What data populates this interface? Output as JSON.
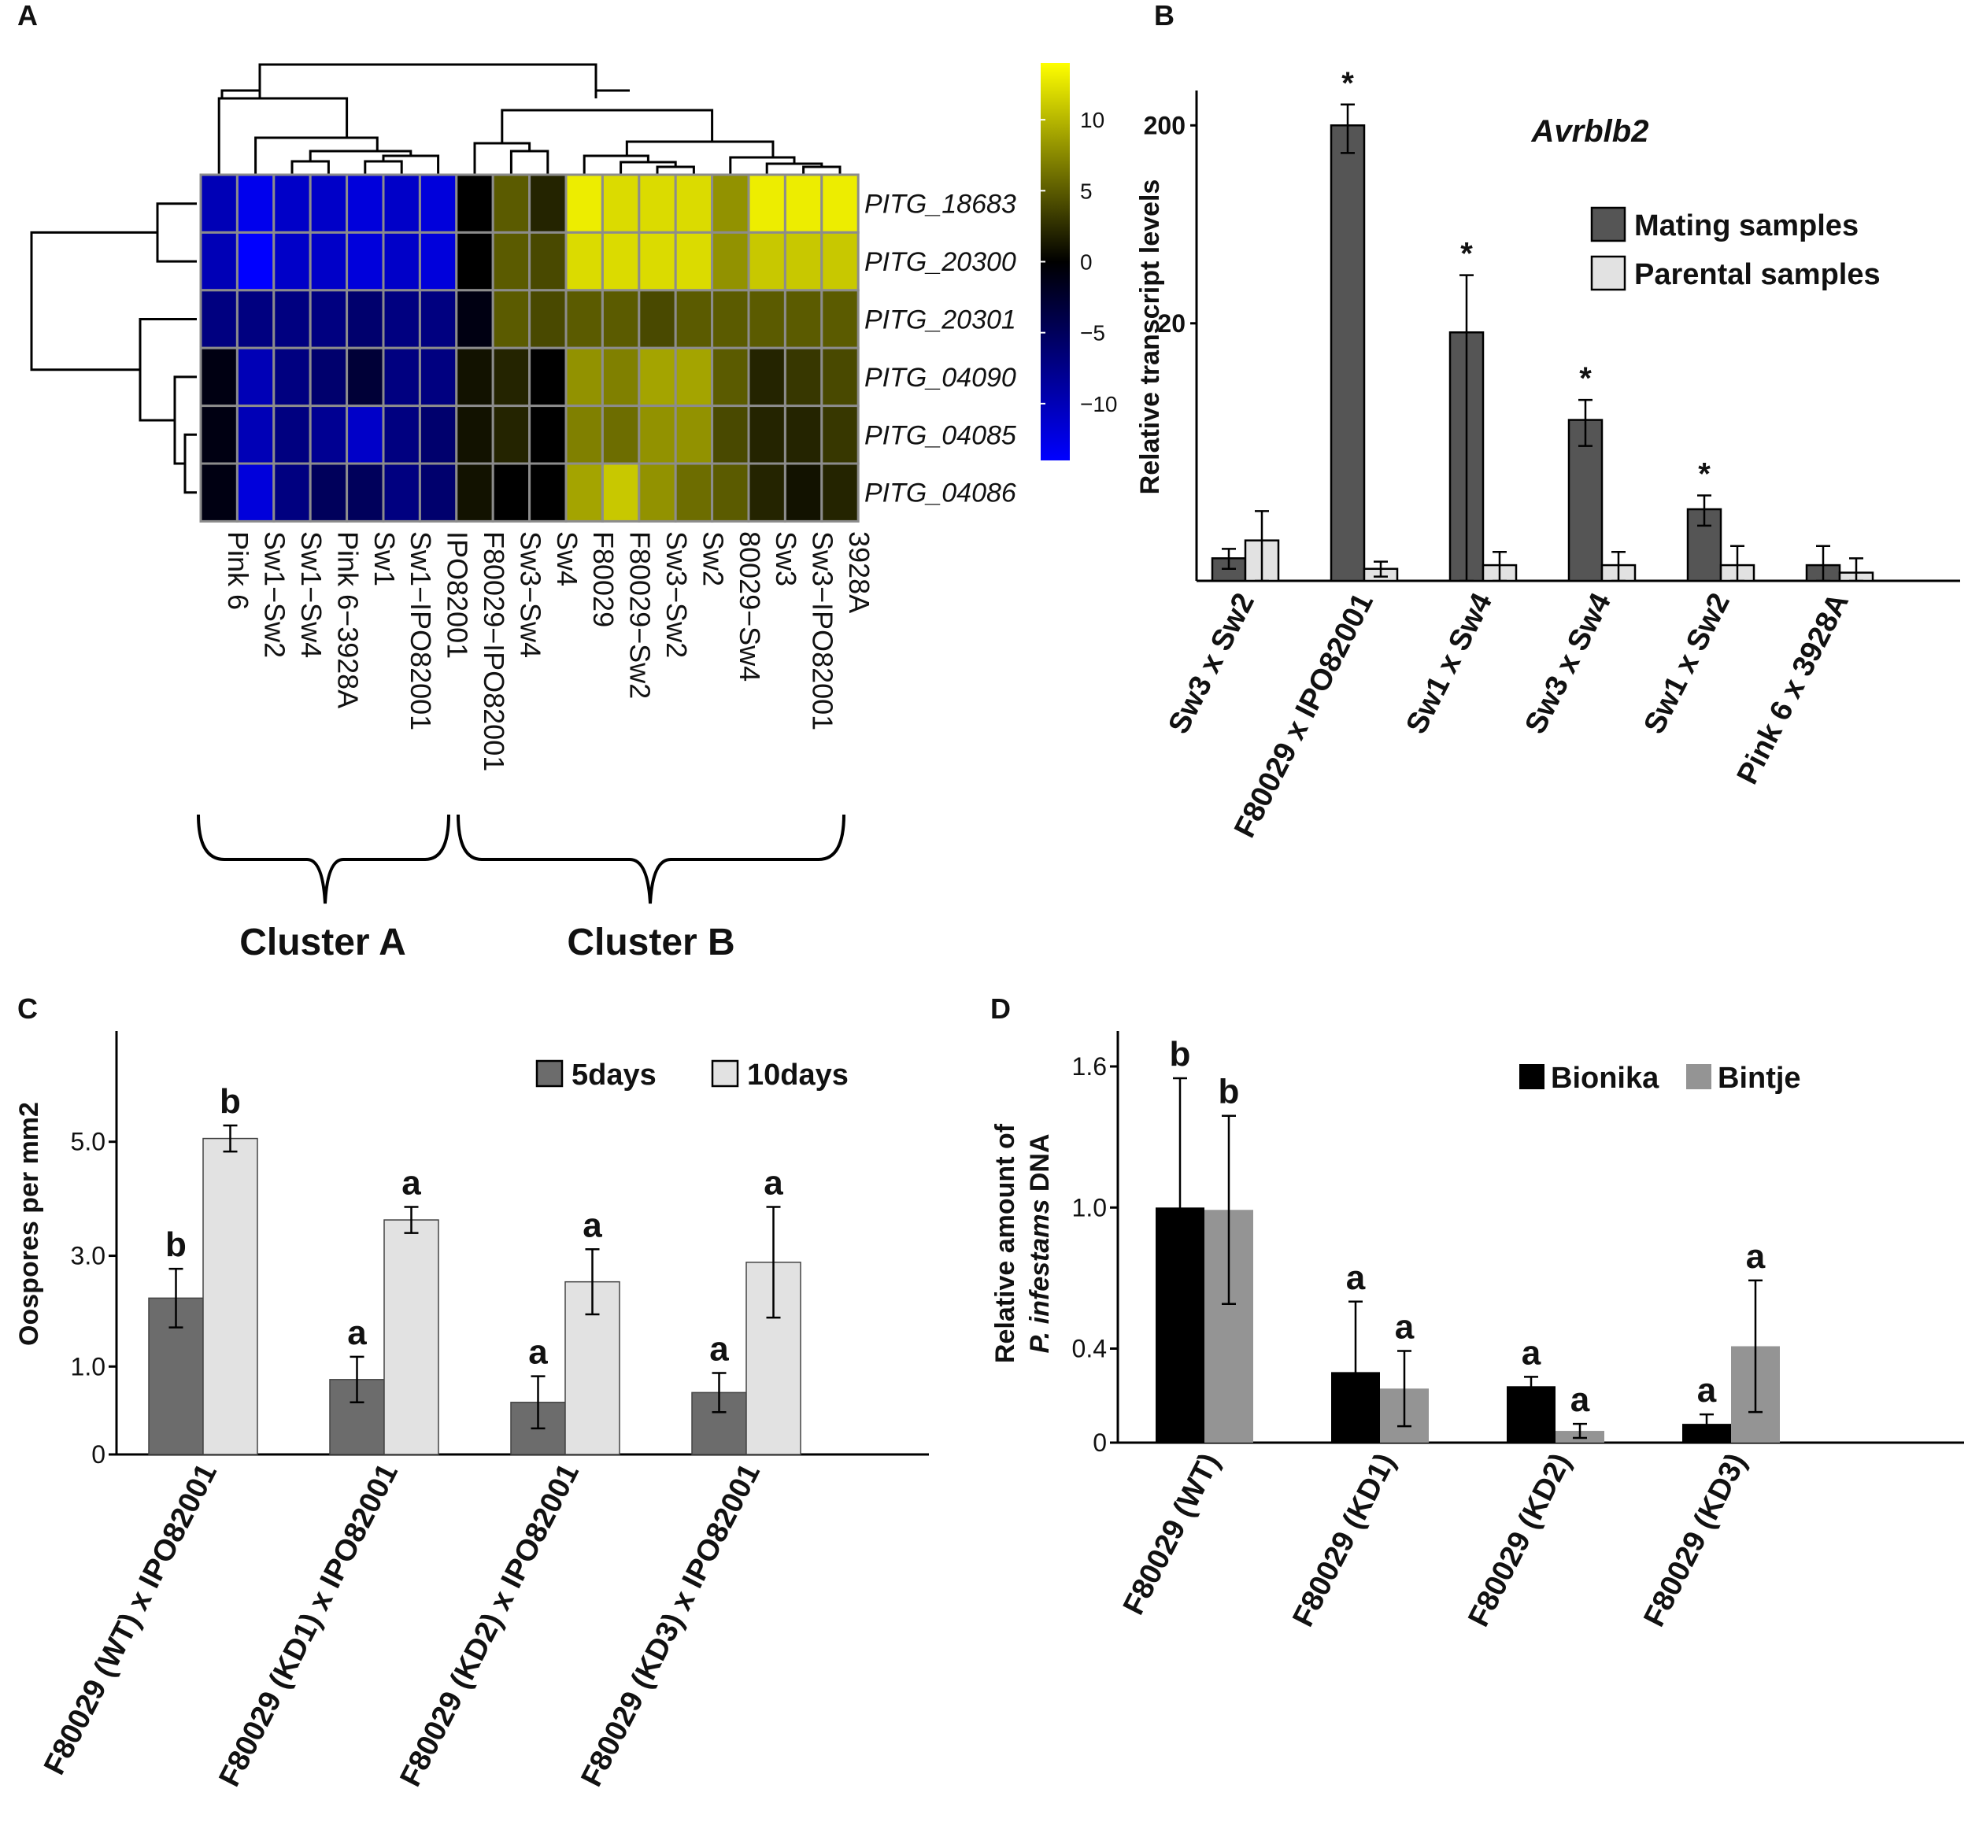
{
  "panels": {
    "A": {
      "letter": "A",
      "cluster_labels": [
        "Cluster A",
        "Cluster B"
      ],
      "chart_data": {
        "type": "heatmap",
        "rows": [
          "PITG_18683",
          "PITG_20300",
          "PITG_20301",
          "PITG_04090",
          "PITG_04085",
          "PITG_04086"
        ],
        "columns": [
          "Pink 6",
          "Sw1−Sw2",
          "Sw1−Sw4",
          "Pink 6−3928A",
          "Sw1",
          "Sw1−IPO82001",
          "IPO82001",
          "F80029−IPO82001",
          "Sw3−Sw4",
          "Sw4",
          "F80029",
          "F80029−Sw2",
          "Sw3−Sw2",
          "Sw2",
          "80029−Sw4",
          "Sw3",
          "Sw3−IPO82001",
          "3928A"
        ],
        "values": [
          [
            -10,
            -13,
            -11,
            -11,
            -12,
            -11,
            -12,
            0,
            5,
            2,
            13,
            12,
            12,
            12,
            8,
            13,
            13,
            13
          ],
          [
            -10,
            -14,
            -11,
            -11,
            -12,
            -11,
            -12,
            0,
            5,
            4,
            12,
            12,
            12,
            12,
            8,
            11,
            11,
            11
          ],
          [
            -7,
            -7,
            -7,
            -7,
            -6,
            -7,
            -7,
            -1,
            5,
            4,
            5,
            5,
            4,
            5,
            5,
            5,
            5,
            5
          ],
          [
            -1,
            -10,
            -7,
            -6,
            -3,
            -7,
            -7,
            1,
            2,
            0,
            8,
            7,
            9,
            9,
            5,
            2,
            3,
            4
          ],
          [
            -1,
            -10,
            -7,
            -8,
            -11,
            -7,
            -6,
            1,
            2,
            0,
            7,
            6,
            8,
            8,
            4,
            2,
            2,
            3
          ],
          [
            -1,
            -12,
            -7,
            -5,
            -5,
            -7,
            -6,
            1,
            0,
            0,
            9,
            11,
            8,
            6,
            5,
            2,
            1,
            2
          ]
        ],
        "colorbar": {
          "ticks": [
            10,
            5,
            0,
            -5,
            -10
          ],
          "range": [
            -14,
            14
          ],
          "colors": [
            "#0000ff",
            "#000000",
            "#ffff00"
          ]
        }
      }
    },
    "B": {
      "letter": "B",
      "chart_data": {
        "type": "bar",
        "title": "Avrblb2",
        "ylabel": "Relative transcript levels",
        "yscale": "log",
        "ylim": [
          1,
          300
        ],
        "yticks": [
          20,
          200
        ],
        "categories": [
          "Sw3 x Sw2",
          "F80029 x IPO82001",
          "Sw1 x Sw4",
          "Sw3 x Sw4",
          "Sw1 x Sw2",
          "Pink 6 x 3928A"
        ],
        "series": [
          {
            "name": "Mating samples",
            "color": "#555555",
            "values": [
              1.3,
              200,
              18,
              6.5,
              2.3,
              1.2
            ],
            "errors": [
              0.15,
              55,
              17,
              1.7,
              0.4,
              0.3
            ]
          },
          {
            "name": "Parental samples",
            "color": "#e2e2e2",
            "values": [
              1.6,
              1.15,
              1.2,
              1.2,
              1.2,
              1.1
            ],
            "errors": [
              0.65,
              0.1,
              0.2,
              0.2,
              0.3,
              0.2
            ]
          }
        ],
        "annotations": [
          "",
          "*",
          "*",
          "*",
          "*",
          ""
        ],
        "legend": "top-right"
      }
    },
    "C": {
      "letter": "C",
      "chart_data": {
        "type": "bar",
        "ylabel": "Oospores per mm2",
        "ylim": [
          0,
          6.5
        ],
        "yticks": [
          "0",
          "1.0",
          "3.0",
          "5.0"
        ],
        "categories": [
          "F80029 (WT) x IPO82001",
          "F80029 (KD1) x IPO82001",
          "F80029 (KD2) x IPO82001",
          "F80029 (KD3) x IPO82001"
        ],
        "series": [
          {
            "name": "5days",
            "color": "#6c6c6c",
            "values": [
              2.4,
              1.15,
              0.8,
              0.95
            ],
            "errors": [
              0.45,
              0.35,
              0.4,
              0.3
            ],
            "letters": [
              "b",
              "a",
              "a",
              "a"
            ]
          },
          {
            "name": "10days",
            "color": "#e2e2e2",
            "values": [
              4.85,
              3.6,
              2.65,
              2.95
            ],
            "errors": [
              0.2,
              0.2,
              0.5,
              0.85
            ],
            "letters": [
              "b",
              "a",
              "a",
              "a"
            ]
          }
        ],
        "legend": "top-right"
      }
    },
    "D": {
      "letter": "D",
      "chart_data": {
        "type": "bar",
        "ylabel_line1": "Relative amount of",
        "ylabel_line2_italic": "P. infestams",
        "ylabel_line2_rest": " DNA",
        "ylim": [
          0,
          1.6
        ],
        "yticks": [
          "0",
          "0.4",
          "1.0",
          "1.6"
        ],
        "categories": [
          "F80029 (WT)",
          "F80029 (KD1)",
          "F80029 (KD2)",
          "F80029 (KD3)"
        ],
        "series": [
          {
            "name": "Bionika",
            "color": "#000000",
            "values": [
              1.0,
              0.3,
              0.24,
              0.08
            ],
            "errors": [
              0.55,
              0.3,
              0.04,
              0.04
            ],
            "letters": [
              "b",
              "a",
              "a",
              "a"
            ]
          },
          {
            "name": "Bintje",
            "color": "#949494",
            "values": [
              0.99,
              0.23,
              0.05,
              0.41
            ],
            "errors": [
              0.4,
              0.16,
              0.03,
              0.28
            ],
            "letters": [
              "b",
              "a",
              "a",
              "a"
            ]
          }
        ],
        "legend": "top-right"
      }
    }
  }
}
